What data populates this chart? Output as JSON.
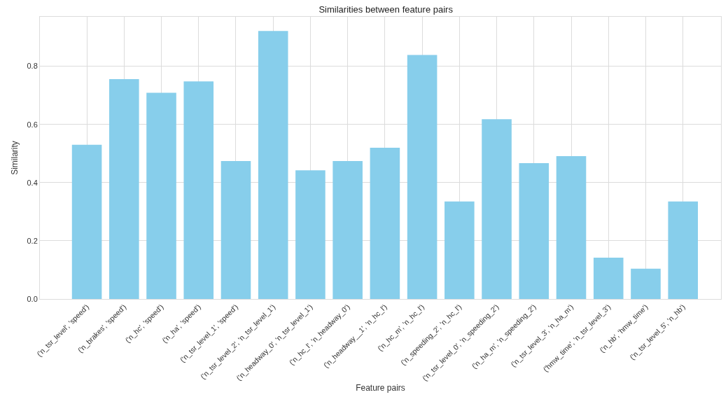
{
  "chart_data": {
    "type": "bar",
    "title": "Similarities between feature pairs",
    "xlabel": "Feature pairs",
    "ylabel": "Similarity",
    "categories": [
      "('n_tsr_level', 'speed')",
      "('n_brakes', 'speed')",
      "('n_hc', 'speed')",
      "('n_ha', 'speed')",
      "('n_tsr_level_1', 'speed')",
      "('n_tsr_level_2', 'n_tsr_level_1')",
      "('n_headway_0', 'n_tsr_level_1')",
      "('n_hc_l', 'n_headway_0')",
      "('n_headway__1', 'n_hc_l')",
      "('n_hc_m', 'n_hc_l')",
      "('n_speeding_2', 'n_hc_l')",
      "('n_tsr_level_0', 'n_speeding_2')",
      "('n_ha_m', 'n_speeding_2')",
      "('n_tsr_level_3', 'n_ha_m')",
      "('hmw_time', 'n_tsr_level_3')",
      "('n_hb', 'hmw_time')",
      "('n_tsr_level_5', 'n_hb')"
    ],
    "values": [
      0.53,
      0.756,
      0.709,
      0.748,
      0.474,
      0.921,
      0.442,
      0.474,
      0.52,
      0.839,
      0.335,
      0.618,
      0.467,
      0.491,
      0.142,
      0.104,
      0.335
    ],
    "color": "#87ceeb",
    "ylim": [
      0,
      0.97
    ],
    "yticks": [
      {
        "value": 0,
        "label": "0.0"
      },
      {
        "value": 0.2,
        "label": "0.2"
      },
      {
        "value": 0.4,
        "label": "0.4"
      },
      {
        "value": 0.6,
        "label": "0.6"
      },
      {
        "value": 0.8,
        "label": "0.8"
      }
    ],
    "grid": true
  }
}
